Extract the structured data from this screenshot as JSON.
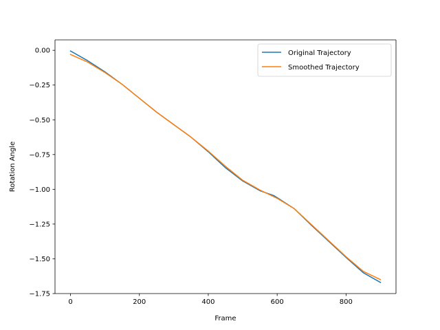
{
  "chart_data": {
    "type": "line",
    "title": "",
    "xlabel": "Frame",
    "ylabel": "Rotation Angle",
    "xlim": [
      -45,
      945
    ],
    "ylim": [
      -1.75,
      0.075
    ],
    "xticks": [
      0,
      200,
      400,
      600,
      800
    ],
    "yticks": [
      0.0,
      -0.25,
      -0.5,
      -0.75,
      -1.0,
      -1.25,
      -1.5,
      -1.75
    ],
    "xtick_labels": [
      "0",
      "200",
      "400",
      "600",
      "800"
    ],
    "ytick_labels": [
      "0.00",
      "−0.25",
      "−0.50",
      "−0.75",
      "−1.00",
      "−1.25",
      "−1.50",
      "−1.75"
    ],
    "grid": false,
    "legend_position": "top-right",
    "series": [
      {
        "name": "Original Trajectory",
        "color": "#1f77b4",
        "x": [
          0,
          50,
          100,
          150,
          200,
          250,
          300,
          350,
          400,
          450,
          500,
          550,
          590,
          600,
          650,
          700,
          750,
          800,
          850,
          900
        ],
        "y": [
          -0.005,
          -0.075,
          -0.155,
          -0.245,
          -0.345,
          -0.445,
          -0.535,
          -0.625,
          -0.73,
          -0.845,
          -0.94,
          -1.01,
          -1.045,
          -1.06,
          -1.14,
          -1.26,
          -1.375,
          -1.49,
          -1.6,
          -1.67
        ]
      },
      {
        "name": "Smoothed Trajectory",
        "color": "#ff7f0e",
        "x": [
          0,
          50,
          100,
          150,
          200,
          250,
          300,
          350,
          400,
          450,
          500,
          550,
          600,
          650,
          700,
          750,
          800,
          850,
          900
        ],
        "y": [
          -0.03,
          -0.085,
          -0.16,
          -0.245,
          -0.345,
          -0.445,
          -0.535,
          -0.625,
          -0.725,
          -0.835,
          -0.935,
          -1.005,
          -1.065,
          -1.14,
          -1.255,
          -1.37,
          -1.485,
          -1.59,
          -1.65
        ]
      }
    ]
  }
}
